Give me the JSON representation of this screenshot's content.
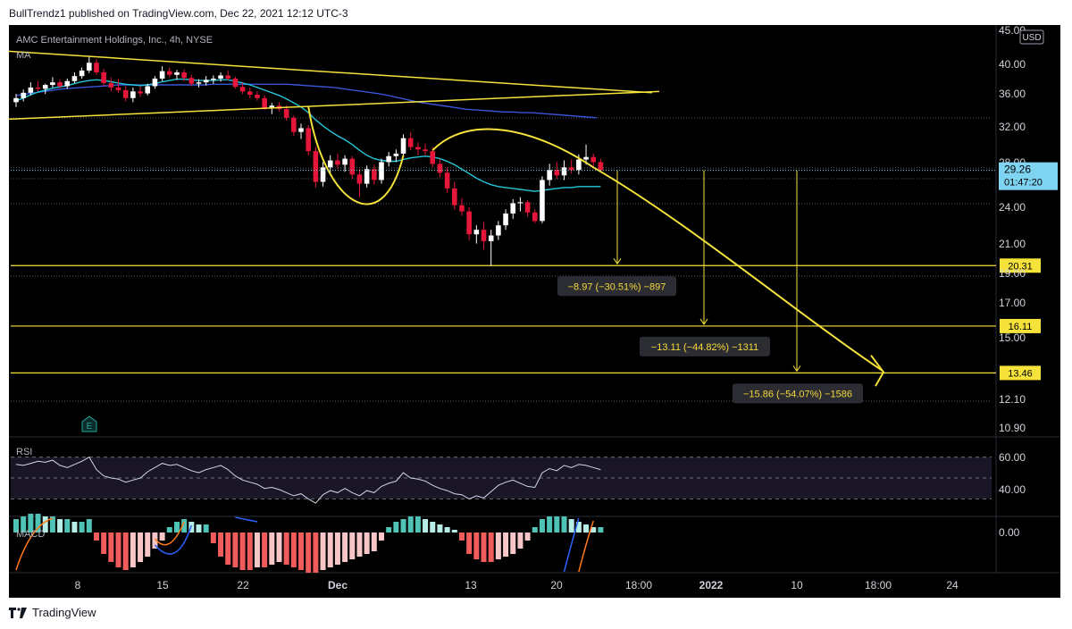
{
  "header": {
    "text": "BullTrendz1 published on TradingView.com, Dec 22, 2021 12:12 UTC-3"
  },
  "footer": {
    "brand": "TradingView"
  },
  "chart_data": {
    "type": "candlestick",
    "symbol_legend": "AMC Entertainment Holdings, Inc., 4h, NYSE",
    "ma_label": "MA",
    "rsi_label": "RSI",
    "macd_label": "MACD",
    "currency": "USD",
    "earnings_marker": "E",
    "colors": {
      "bg": "#000000",
      "up": "#ffffff",
      "down": "#e5163a",
      "ma_fast": "#26c6da",
      "ma_slow": "#3a55d8",
      "trend": "#f5e23b",
      "grid": "#555a66",
      "rsi": "#cfd8e6",
      "macd_up": "#4fc3b5",
      "macd_up_light": "#b7ede7",
      "macd_down": "#f05b5b",
      "macd_down_light": "#f7c6c6",
      "price_box": "#7fd4f2"
    },
    "y_axis_ticks": [
      "45.00",
      "40.00",
      "36.00",
      "32.00",
      "28.00",
      "24.00",
      "21.00",
      "19.00",
      "17.00",
      "15.00",
      "12.10",
      "10.90"
    ],
    "rsi_ticks": [
      "60.00",
      "40.00"
    ],
    "macd_ticks": [
      "0.00"
    ],
    "x_axis_ticks": [
      "8",
      "15",
      "22",
      "Dec",
      "13",
      "20",
      "18:00",
      "2022",
      "10",
      "18:00",
      "24"
    ],
    "current_price": {
      "value": "29.26",
      "countdown": "01:47:20"
    },
    "levels": [
      {
        "price": 20.31,
        "label": "20.31"
      },
      {
        "price": 16.11,
        "label": "16.11"
      },
      {
        "price": 13.46,
        "label": "13.46"
      }
    ],
    "measurements": [
      {
        "text": "−8.97 (−30.51%) −897",
        "target": 20.31
      },
      {
        "text": "−13.11 (−44.82%) −1311",
        "target": 16.11
      },
      {
        "text": "−15.86 (−54.07%) −1586",
        "target": 13.46
      }
    ],
    "candles": [
      [
        38.0,
        39.2,
        37.3,
        38.6
      ],
      [
        38.6,
        39.9,
        38.1,
        39.4
      ],
      [
        39.4,
        41.0,
        39.0,
        40.2
      ],
      [
        40.2,
        41.2,
        39.6,
        40.0
      ],
      [
        40.0,
        40.8,
        39.2,
        40.6
      ],
      [
        40.6,
        41.8,
        40.2,
        41.0
      ],
      [
        41.0,
        41.4,
        40.1,
        40.4
      ],
      [
        40.4,
        41.6,
        40.0,
        41.2
      ],
      [
        41.2,
        42.6,
        40.9,
        42.0
      ],
      [
        42.0,
        43.4,
        41.6,
        42.9
      ],
      [
        42.9,
        45.2,
        42.5,
        44.2
      ],
      [
        44.2,
        44.8,
        42.2,
        42.6
      ],
      [
        42.6,
        43.2,
        40.4,
        40.9
      ],
      [
        40.9,
        41.8,
        39.6,
        40.2
      ],
      [
        40.2,
        41.5,
        39.4,
        39.8
      ],
      [
        39.8,
        40.4,
        38.1,
        38.6
      ],
      [
        38.6,
        40.2,
        38.0,
        39.6
      ],
      [
        39.6,
        40.4,
        38.8,
        39.3
      ],
      [
        39.3,
        40.8,
        39.0,
        40.4
      ],
      [
        40.4,
        42.0,
        40.0,
        41.6
      ],
      [
        41.6,
        43.6,
        41.2,
        42.8
      ],
      [
        42.8,
        43.4,
        41.8,
        42.2
      ],
      [
        42.2,
        43.0,
        41.4,
        42.6
      ],
      [
        42.6,
        43.1,
        41.2,
        41.7
      ],
      [
        41.7,
        42.2,
        40.4,
        40.8
      ],
      [
        40.8,
        41.5,
        40.2,
        41.0
      ],
      [
        41.0,
        42.0,
        40.5,
        41.4
      ],
      [
        41.4,
        42.1,
        40.8,
        41.6
      ],
      [
        41.6,
        42.6,
        41.1,
        42.1
      ],
      [
        42.1,
        42.9,
        41.3,
        41.6
      ],
      [
        41.6,
        41.9,
        40.0,
        40.3
      ],
      [
        40.3,
        40.9,
        39.2,
        39.6
      ],
      [
        39.6,
        40.2,
        38.6,
        39.1
      ],
      [
        39.1,
        39.6,
        38.2,
        38.6
      ],
      [
        38.6,
        39.0,
        36.9,
        37.2
      ],
      [
        37.2,
        37.9,
        36.3,
        37.5
      ],
      [
        37.5,
        38.0,
        36.7,
        37.0
      ],
      [
        37.0,
        37.5,
        35.4,
        35.8
      ],
      [
        35.8,
        36.1,
        33.4,
        33.9
      ],
      [
        33.9,
        35.0,
        33.0,
        34.4
      ],
      [
        34.4,
        34.8,
        31.0,
        31.5
      ],
      [
        31.5,
        32.0,
        27.4,
        28.0
      ],
      [
        28.0,
        30.2,
        27.5,
        29.6
      ],
      [
        29.6,
        31.0,
        29.0,
        30.4
      ],
      [
        30.4,
        31.2,
        29.4,
        29.9
      ],
      [
        29.9,
        31.0,
        29.1,
        30.6
      ],
      [
        30.6,
        30.9,
        28.3,
        28.8
      ],
      [
        28.8,
        29.4,
        26.4,
        27.8
      ],
      [
        27.8,
        29.8,
        27.4,
        29.4
      ],
      [
        29.4,
        29.9,
        27.7,
        28.2
      ],
      [
        28.2,
        30.6,
        27.8,
        30.2
      ],
      [
        30.2,
        31.4,
        29.7,
        30.9
      ],
      [
        30.9,
        31.7,
        30.2,
        31.2
      ],
      [
        31.2,
        33.6,
        30.9,
        33.1
      ],
      [
        33.1,
        33.9,
        31.6,
        32.0
      ],
      [
        32.0,
        32.6,
        31.0,
        31.7
      ],
      [
        31.7,
        32.4,
        31.0,
        31.5
      ],
      [
        31.5,
        32.0,
        29.6,
        30.0
      ],
      [
        30.0,
        30.6,
        28.5,
        29.0
      ],
      [
        29.0,
        29.6,
        26.8,
        27.3
      ],
      [
        27.3,
        28.0,
        25.2,
        25.6
      ],
      [
        25.6,
        26.3,
        24.6,
        25.0
      ],
      [
        25.0,
        25.4,
        22.4,
        22.9
      ],
      [
        22.9,
        23.7,
        22.1,
        23.3
      ],
      [
        23.3,
        24.0,
        21.6,
        22.3
      ],
      [
        22.3,
        23.3,
        20.3,
        22.8
      ],
      [
        22.8,
        24.1,
        22.4,
        23.7
      ],
      [
        23.7,
        25.2,
        23.3,
        24.8
      ],
      [
        24.8,
        26.2,
        24.3,
        25.8
      ],
      [
        25.8,
        26.4,
        25.0,
        25.9
      ],
      [
        25.9,
        26.1,
        24.5,
        24.9
      ],
      [
        24.9,
        25.2,
        23.9,
        24.1
      ],
      [
        24.1,
        28.6,
        23.9,
        28.2
      ],
      [
        28.2,
        30.0,
        27.6,
        29.3
      ],
      [
        29.3,
        30.2,
        28.3,
        28.7
      ],
      [
        28.7,
        30.4,
        28.2,
        29.6
      ],
      [
        29.6,
        30.5,
        28.9,
        29.3
      ],
      [
        29.3,
        31.1,
        28.8,
        30.5
      ],
      [
        30.5,
        32.3,
        29.9,
        30.8
      ],
      [
        30.8,
        31.2,
        29.7,
        30.2
      ],
      [
        30.2,
        30.6,
        29.0,
        29.26
      ]
    ],
    "ma_fast": [
      38.2,
      38.6,
      39.1,
      39.5,
      39.8,
      40.1,
      40.3,
      40.5,
      40.8,
      41.1,
      41.3,
      41.4,
      41.3,
      41.1,
      40.9,
      40.7,
      40.6,
      40.5,
      40.6,
      40.8,
      41.1,
      41.3,
      41.5,
      41.5,
      41.4,
      41.3,
      41.3,
      41.3,
      41.4,
      41.4,
      41.2,
      40.9,
      40.6,
      40.2,
      39.8,
      39.4,
      39.0,
      38.5,
      37.9,
      37.3,
      36.5,
      35.5,
      34.7,
      34.0,
      33.4,
      32.9,
      32.3,
      31.6,
      31.0,
      30.6,
      30.4,
      30.3,
      30.3,
      30.5,
      30.7,
      30.8,
      30.9,
      30.8,
      30.6,
      30.3,
      29.9,
      29.4,
      28.9,
      28.4,
      28.0,
      27.7,
      27.5,
      27.4,
      27.3,
      27.2,
      27.1,
      27.0,
      27.1,
      27.2,
      27.3,
      27.4,
      27.4,
      27.5,
      27.5,
      27.5,
      27.5
    ],
    "ma_slow": [
      39.0,
      39.2,
      39.4,
      39.6,
      39.8,
      40.0,
      40.1,
      40.2,
      40.3,
      40.4,
      40.5,
      40.6,
      40.6,
      40.6,
      40.6,
      40.6,
      40.6,
      40.6,
      40.6,
      40.6,
      40.6,
      40.7,
      40.7,
      40.7,
      40.7,
      40.7,
      40.7,
      40.7,
      40.7,
      40.7,
      40.6,
      40.5,
      40.4,
      40.3,
      40.2,
      40.0,
      39.8,
      39.6,
      39.4,
      39.2,
      38.9,
      38.6,
      38.3,
      38.0,
      37.8,
      37.6,
      37.4,
      37.2,
      37.0,
      36.9,
      36.8,
      36.7,
      36.6,
      36.6,
      36.5,
      36.5,
      36.4,
      36.3,
      36.2,
      36.1,
      36.0,
      35.9,
      35.8
    ],
    "rsi": [
      63,
      62,
      64,
      66,
      65,
      67,
      62,
      60,
      63,
      66,
      70,
      58,
      52,
      50,
      49,
      46,
      48,
      50,
      56,
      60,
      64,
      62,
      63,
      60,
      57,
      55,
      58,
      60,
      62,
      58,
      52,
      48,
      46,
      44,
      40,
      41,
      39,
      36,
      33,
      35,
      30,
      26,
      34,
      38,
      36,
      40,
      36,
      33,
      38,
      36,
      42,
      45,
      47,
      55,
      50,
      49,
      47,
      43,
      40,
      38,
      35,
      34,
      30,
      33,
      31,
      37,
      43,
      46,
      48,
      45,
      42,
      41,
      55,
      59,
      57,
      62,
      60,
      63,
      62,
      60,
      58
    ],
    "macd_hist": [
      0.5,
      0.6,
      0.7,
      0.7,
      0.6,
      0.6,
      0.5,
      0.5,
      0.4,
      0.4,
      0.5,
      -0.3,
      -0.8,
      -1.1,
      -1.3,
      -1.4,
      -1.3,
      -1.1,
      -0.9,
      -0.6,
      -0.3,
      0.2,
      0.4,
      0.5,
      0.4,
      0.3,
      0.3,
      -0.4,
      -0.9,
      -1.2,
      -1.3,
      -1.4,
      -1.4,
      -1.3,
      -1.3,
      -1.2,
      -1.1,
      -1.2,
      -1.3,
      -1.4,
      -1.5,
      -1.5,
      -1.4,
      -1.3,
      -1.2,
      -1.1,
      -1.0,
      -0.9,
      -0.8,
      -0.7,
      -0.3,
      0.2,
      0.4,
      0.5,
      0.6,
      0.6,
      0.5,
      0.4,
      0.3,
      0.2,
      0.1,
      -0.3,
      -0.8,
      -1.0,
      -1.1,
      -1.1,
      -1.0,
      -0.9,
      -0.8,
      -0.6,
      -0.3,
      0.2,
      0.5,
      0.6,
      0.6,
      0.6,
      0.5,
      0.4,
      0.3,
      0.2,
      0.2
    ]
  }
}
